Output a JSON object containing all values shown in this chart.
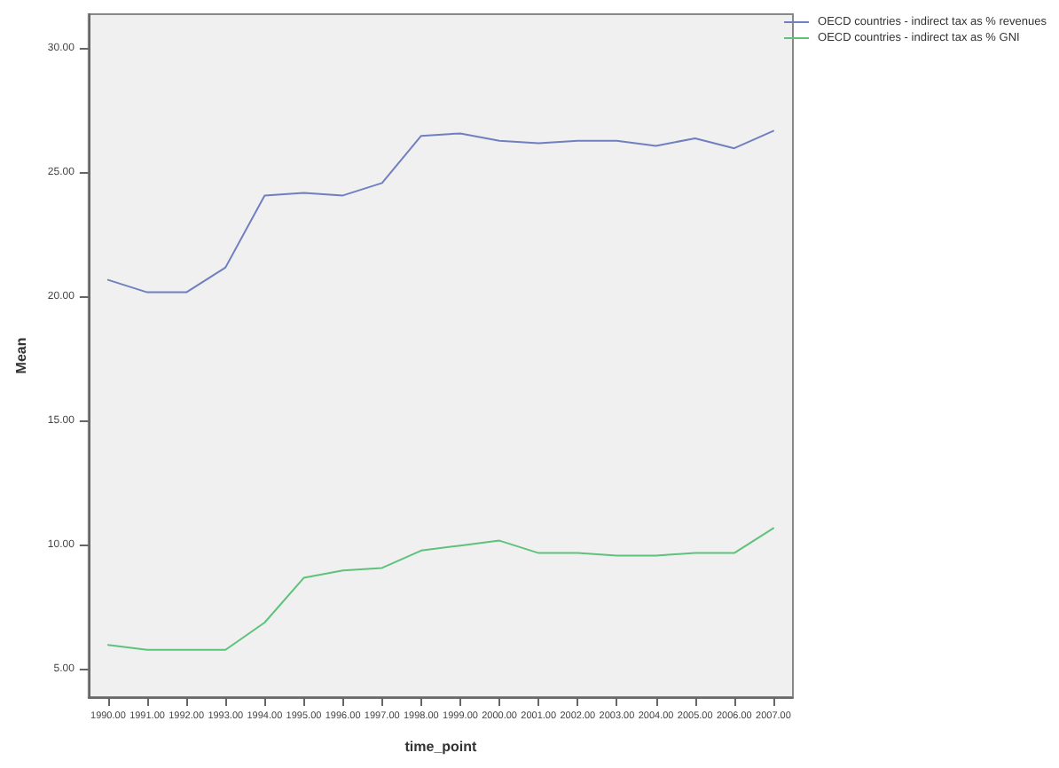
{
  "chart_data": {
    "type": "line",
    "xlabel": "time_point",
    "ylabel": "Mean",
    "categories": [
      "1990.00",
      "1991.00",
      "1992.00",
      "1993.00",
      "1994.00",
      "1995.00",
      "1996.00",
      "1997.00",
      "1998.00",
      "1999.00",
      "2000.00",
      "2001.00",
      "2002.00",
      "2003.00",
      "2004.00",
      "2005.00",
      "2006.00",
      "2007.00"
    ],
    "series": [
      {
        "name": "OECD countries - indirect tax as % revenues",
        "color": "#6f7fc0",
        "values": [
          20.7,
          20.2,
          20.2,
          21.2,
          24.1,
          24.2,
          24.1,
          24.6,
          26.5,
          26.6,
          26.3,
          26.2,
          26.3,
          26.3,
          26.1,
          26.4,
          26.0,
          26.7
        ]
      },
      {
        "name": "OECD countries - indirect tax as % GNI",
        "color": "#5ec27a",
        "values": [
          6.0,
          5.8,
          5.8,
          5.8,
          6.9,
          8.7,
          9.0,
          9.1,
          9.8,
          10.0,
          10.2,
          9.7,
          9.7,
          9.6,
          9.6,
          9.7,
          9.7,
          10.7
        ]
      }
    ],
    "ylim": [
      3.9,
      31.4
    ],
    "yticks": [
      {
        "value": 5,
        "label": "5.00"
      },
      {
        "value": 10,
        "label": "10.00"
      },
      {
        "value": 15,
        "label": "15.00"
      },
      {
        "value": 20,
        "label": "20.00"
      },
      {
        "value": 25,
        "label": "25.00"
      },
      {
        "value": 30,
        "label": "30.00"
      }
    ],
    "grid": false,
    "legend": "top right",
    "marker": "none",
    "line_style": "solid"
  }
}
